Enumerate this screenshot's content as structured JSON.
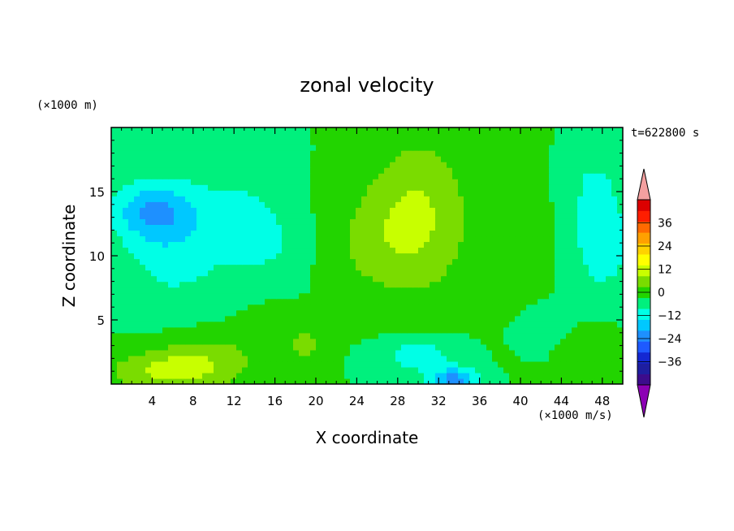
{
  "chart_data": {
    "type": "heatmap",
    "title": "zonal velocity",
    "xlabel": "X coordinate",
    "ylabel": "Z coordinate",
    "x_unit": "(×1000 m/s)",
    "y_unit": "(×1000 m)",
    "time_label": "t=622800 s",
    "xlim": [
      0,
      50
    ],
    "ylim": [
      0,
      20
    ],
    "x_ticks": [
      4,
      8,
      12,
      16,
      20,
      24,
      28,
      32,
      36,
      40,
      44,
      48
    ],
    "y_ticks": [
      5,
      10,
      15
    ],
    "colorbar": {
      "levels": [
        -42,
        -36,
        -30,
        -24,
        -18,
        -12,
        -6,
        0,
        6,
        12,
        18,
        24,
        30,
        36,
        42
      ],
      "labels": [
        36,
        24,
        12,
        0,
        -12,
        -24,
        -36
      ],
      "colors": [
        "#3c0c8c",
        "#1e1ea0",
        "#1428d2",
        "#1e5aff",
        "#1e90ff",
        "#00c8ff",
        "#00ffe6",
        "#00f07d",
        "#22d400",
        "#7adc00",
        "#c8ff00",
        "#ffff00",
        "#ffd200",
        "#ffa000",
        "#ff6a00",
        "#ff1e00",
        "#dc0000"
      ],
      "under_color": "#8c00b4",
      "over_color": "#f4a0a0"
    },
    "field": {
      "background": 0,
      "blobs": [
        {
          "x": 4,
          "z": 13.5,
          "sx": 4,
          "sz": 2.2,
          "amp": -14
        },
        {
          "x": 6,
          "z": 11,
          "sx": 5,
          "sz": 5,
          "amp": -9
        },
        {
          "x": 13,
          "z": 13,
          "sx": 4,
          "sz": 5,
          "amp": -6
        },
        {
          "x": 16,
          "z": 11,
          "sx": 3,
          "sz": 3,
          "amp": -4
        },
        {
          "x": 30,
          "z": 13,
          "sx": 5,
          "sz": 6,
          "amp": 13
        },
        {
          "x": 25,
          "z": 11,
          "sx": 4,
          "sz": 4,
          "amp": 5
        },
        {
          "x": 40,
          "z": 12,
          "sx": 3,
          "sz": 7,
          "amp": 3
        },
        {
          "x": 48,
          "z": 11,
          "sx": 3,
          "sz": 4,
          "amp": -10
        },
        {
          "x": 47,
          "z": 16,
          "sx": 3,
          "sz": 3,
          "amp": -5
        },
        {
          "x": 6,
          "z": 1,
          "sx": 6,
          "sz": 1.7,
          "amp": 14
        },
        {
          "x": 10,
          "z": 2.6,
          "sx": 5,
          "sz": 1.8,
          "amp": 6
        },
        {
          "x": 16,
          "z": 5,
          "sx": 3,
          "sz": 1.5,
          "amp": 4
        },
        {
          "x": 19,
          "z": 3,
          "sx": 2,
          "sz": 1.2,
          "amp": 8
        },
        {
          "x": 30,
          "z": 2.3,
          "sx": 3.5,
          "sz": 1.4,
          "amp": -10
        },
        {
          "x": 33.5,
          "z": 0.4,
          "sx": 2.5,
          "sz": 0.9,
          "amp": -20
        },
        {
          "x": 47,
          "z": 2.8,
          "sx": 3,
          "sz": 1.6,
          "amp": 5
        },
        {
          "x": 42,
          "z": 4.5,
          "sx": 3,
          "sz": 2,
          "amp": -3
        }
      ]
    }
  }
}
